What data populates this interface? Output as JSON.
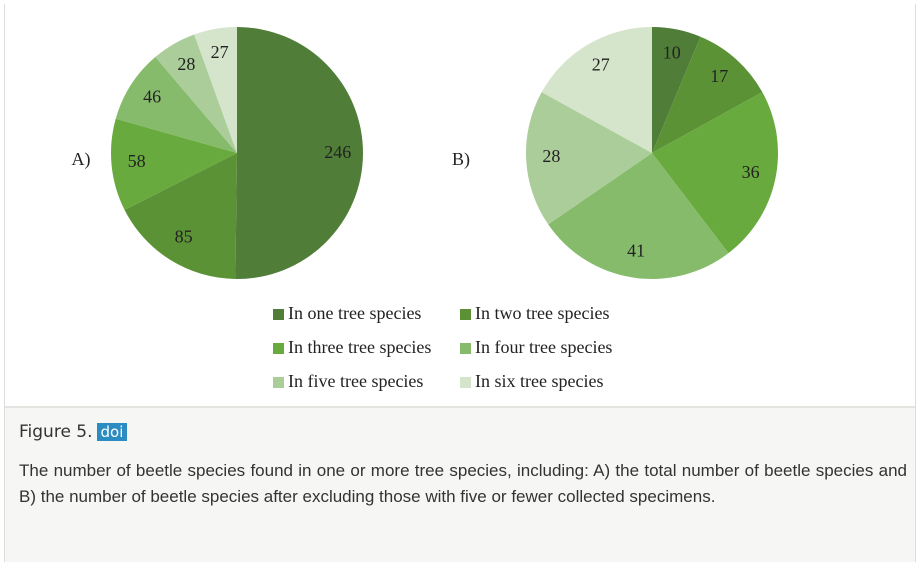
{
  "chart_data": [
    {
      "type": "pie",
      "label": "A)",
      "categories": [
        "In one tree species",
        "In two tree species",
        "In three tree species",
        "In four tree species",
        "In five tree species",
        "In six tree species"
      ],
      "values": [
        246,
        85,
        58,
        46,
        28,
        27
      ],
      "colors": [
        "#507d38",
        "#5b9236",
        "#68aa3d",
        "#86bb6b",
        "#abcd9a",
        "#d5e5cb"
      ]
    },
    {
      "type": "pie",
      "label": "B)",
      "categories": [
        "In one tree species",
        "In two tree species",
        "In three tree species",
        "In four tree species",
        "In five tree species",
        "In six tree species"
      ],
      "values": [
        10,
        17,
        36,
        41,
        28,
        27
      ],
      "colors": [
        "#507d38",
        "#5b9236",
        "#68aa3d",
        "#86bb6b",
        "#abcd9a",
        "#d5e5cb"
      ]
    }
  ],
  "caption": {
    "figure": "Figure 5.",
    "link": "doi",
    "text": "The number of beetle species found in one or more tree species, including: A) the total number of beetle species and B) the number of beetle species after excluding those with five or fewer collected specimens."
  }
}
